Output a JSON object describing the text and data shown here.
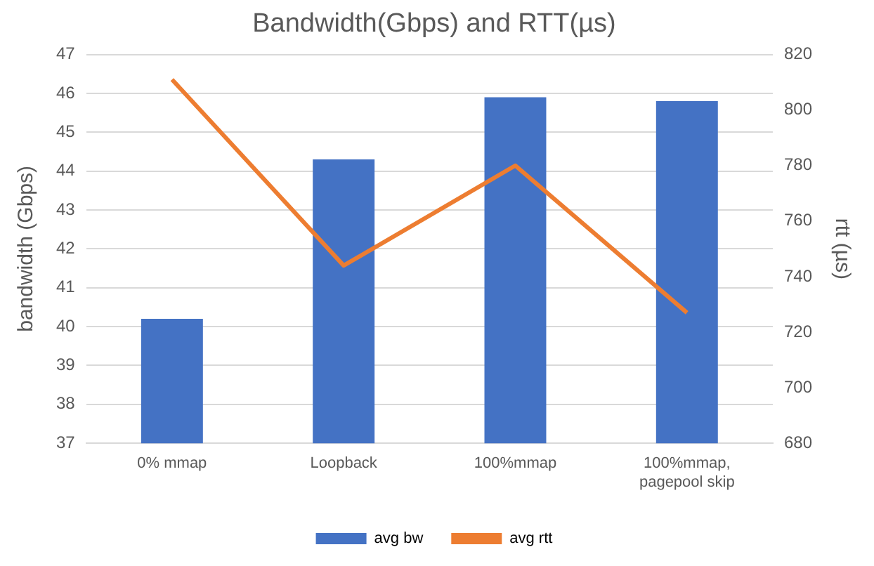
{
  "chart_data": {
    "type": "bar",
    "title": "Bandwidth(Gbps) and RTT(µs)",
    "ylabel": "bandwidth (Gbps)",
    "y2label": "rtt (µs)",
    "categories": [
      "0% mmap",
      "Loopback",
      "100%mmap",
      "100%mmap, pagepool skip"
    ],
    "series": [
      {
        "name": "avg bw",
        "color": "#4472c4",
        "values": [
          40.2,
          44.3,
          45.9,
          45.8
        ]
      },
      {
        "name": "avg rtt",
        "type": "line",
        "axis": "y2",
        "color": "#ed7d31",
        "values": [
          811,
          744,
          780,
          727
        ]
      }
    ],
    "ylim": [
      37,
      47
    ],
    "yticks": [
      37,
      38,
      39,
      40,
      41,
      42,
      43,
      44,
      45,
      46,
      47
    ],
    "y2lim": [
      680,
      820
    ],
    "y2ticks": [
      680,
      700,
      720,
      740,
      760,
      780,
      800,
      820
    ],
    "grid": "y",
    "legend": "bottom",
    "marker": "none"
  }
}
